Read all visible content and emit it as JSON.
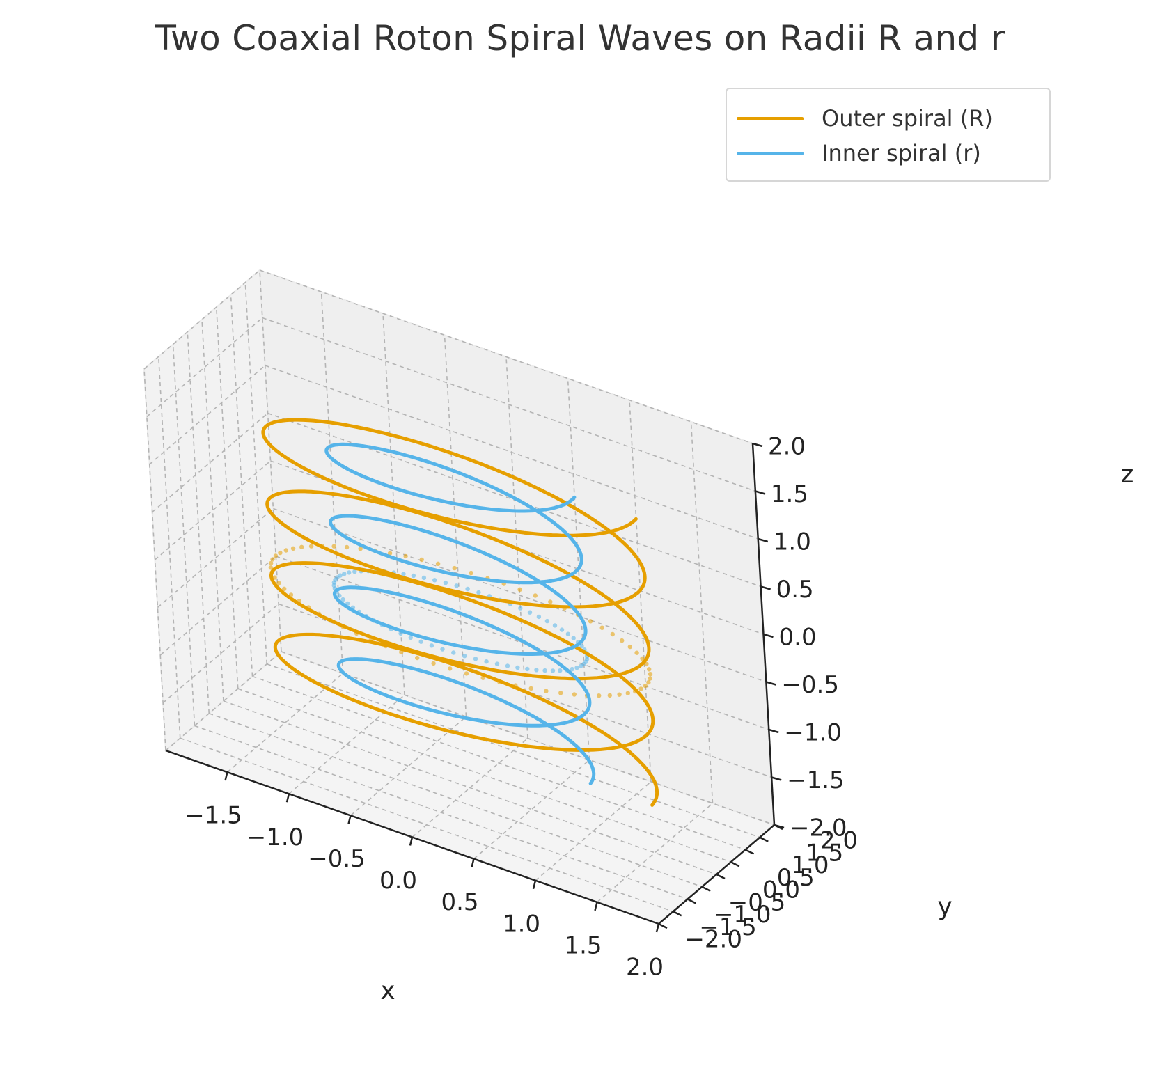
{
  "chart_data": {
    "type": "line",
    "projection": "3d",
    "title": "Two Coaxial Roton Spiral Waves on Radii R and r",
    "xlabel": "x",
    "ylabel": "y",
    "zlabel": "z",
    "xlim": [
      -2.0,
      2.0
    ],
    "ylim": [
      -2.0,
      2.0
    ],
    "zlim": [
      -2.0,
      2.0
    ],
    "xticks": [
      "−1.5",
      "−1.0",
      "−0.5",
      "0.0",
      "0.5",
      "1.0",
      "1.5",
      "2.0"
    ],
    "yticks": [
      "−2.0",
      "−1.5",
      "−1.0",
      "−0.5",
      "0.0",
      "0.5",
      "1.0",
      "1.5",
      "2.0"
    ],
    "zticks": [
      "−2.0",
      "−1.5",
      "−1.0",
      "−0.5",
      "0.0",
      "0.5",
      "1.0",
      "1.5",
      "2.0"
    ],
    "grid": true,
    "legend_position": "top-right",
    "series": [
      {
        "name": "Outer spiral (R)",
        "color": "#E69F00",
        "style": "solid",
        "radius": 1.5,
        "turns": 4,
        "z_range": [
          -1.5,
          1.5
        ],
        "start_angle_deg": 0
      },
      {
        "name": "Inner spiral (r)",
        "color": "#56B4E9",
        "style": "solid",
        "radius": 1.0,
        "turns": 4,
        "z_range": [
          -1.5,
          1.5
        ],
        "start_angle_deg": 0
      }
    ],
    "rings": [
      {
        "color": "#E69F00",
        "radius": 1.5,
        "z": -0.25,
        "style": "dotted-markers"
      },
      {
        "color": "#56B4E9",
        "radius": 1.0,
        "z": -0.25,
        "style": "dotted-markers"
      }
    ]
  }
}
